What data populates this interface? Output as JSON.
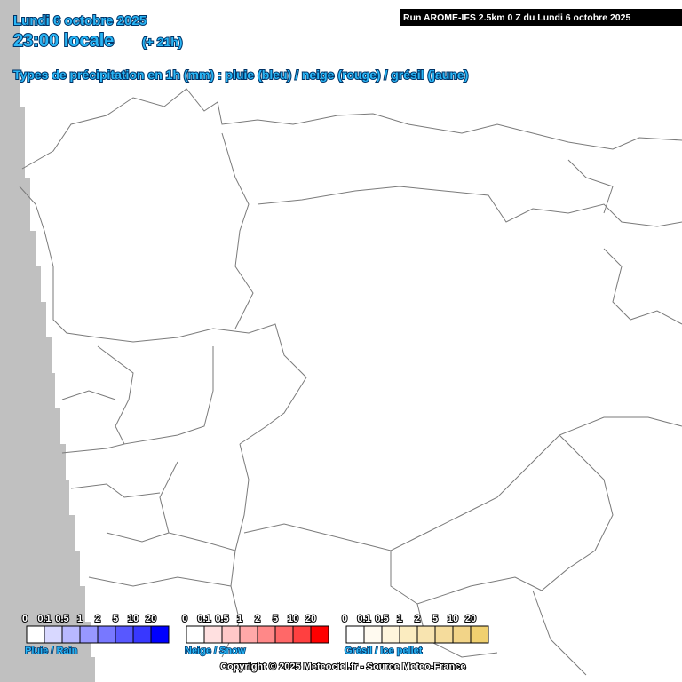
{
  "header": {
    "date": "Lundi 6 octobre 2025",
    "time": "23:00 locale",
    "offset": "(+ 21h)",
    "subtitle": "Types de précipitation en 1h (mm) : pluie (bleu) / neige (rouge) / grésil (jaune)",
    "run": "Run AROME-IFS 2.5km 0 Z du Lundi 6 octobre 2025"
  },
  "legends": [
    {
      "label": "Pluie / Rain",
      "ticks": [
        "0",
        "0.1",
        "0.5",
        "1",
        "2",
        "5",
        "10",
        "20"
      ],
      "colors": [
        "#ffffff",
        "#d8d8ff",
        "#b8b8ff",
        "#9898ff",
        "#7878ff",
        "#5858ff",
        "#3838ff",
        "#0000ff"
      ]
    },
    {
      "label": "Neige / Snow",
      "ticks": [
        "0",
        "0.1",
        "0.5",
        "1",
        "2",
        "5",
        "10",
        "20"
      ],
      "colors": [
        "#ffffff",
        "#ffe0e0",
        "#ffc8c8",
        "#ffa8a8",
        "#ff8888",
        "#ff6868",
        "#ff4040",
        "#ff0000"
      ]
    },
    {
      "label": "Grésil / Ice pellet",
      "ticks": [
        "0",
        "0.1",
        "0.5",
        "1",
        "2",
        "5",
        "10",
        "20"
      ],
      "colors": [
        "#ffffff",
        "#fffaf0",
        "#fff5dc",
        "#fbecc0",
        "#f8e4b0",
        "#f5dc9c",
        "#f2d488",
        "#f0d070"
      ]
    }
  ],
  "copyright": "Copyright © 2025 Meteociel.fr - Source Meteo-France"
}
